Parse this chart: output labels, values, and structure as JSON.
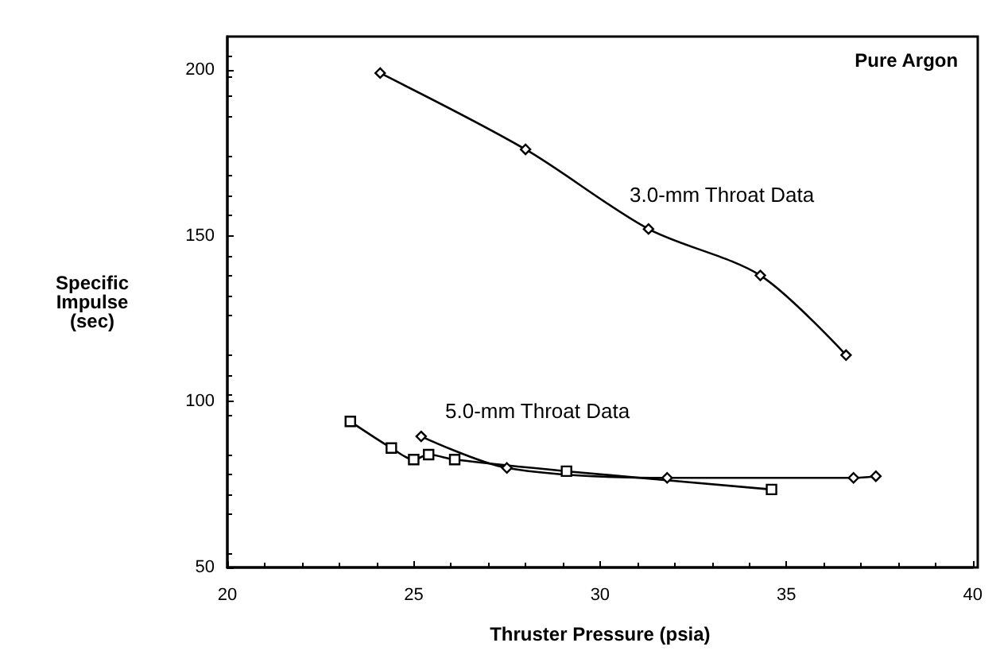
{
  "chart_data": {
    "type": "line",
    "xlabel": "Thruster Pressure (psia)",
    "ylabel": "Specific\nImpulse\n(sec)",
    "xlim": [
      20,
      40
    ],
    "xticks": [
      20,
      25,
      30,
      35,
      40
    ],
    "ylim": [
      50,
      210
    ],
    "yticks": [
      50,
      100,
      150,
      200
    ],
    "grid": false,
    "series": [
      {
        "color": "#000000",
        "marker": "diamond",
        "x": [
          24.1,
          28.0,
          31.3,
          34.3,
          36.6
        ],
        "values": [
          199,
          176,
          152,
          138,
          114
        ]
      },
      {
        "color": "#000000",
        "marker": "square",
        "x": [
          23.3,
          24.4,
          25.0,
          25.4,
          26.1,
          29.1,
          34.6
        ],
        "values": [
          94,
          86,
          82.5,
          84,
          82.5,
          79,
          73.5
        ]
      },
      {
        "color": "#000000",
        "marker": "diamond",
        "x": [
          25.2,
          27.5,
          31.8,
          36.8,
          37.4
        ],
        "values": [
          89.5,
          80,
          77,
          77,
          77.5
        ]
      }
    ],
    "annotations": [
      "Pure Argon",
      "3.0-mm Throat Data",
      "5.0-mm Throat Data"
    ]
  }
}
